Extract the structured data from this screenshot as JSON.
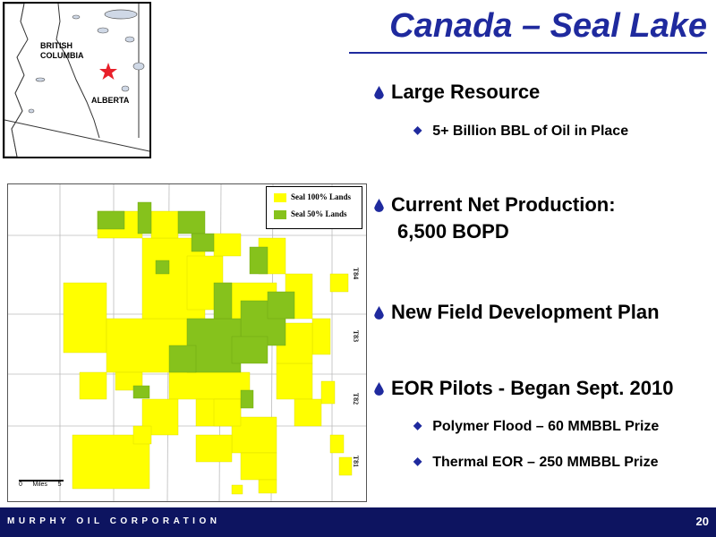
{
  "title": "Canada – Seal Lake",
  "inset_map": {
    "labels": [
      "BRITISH\nCOLUMBIA",
      "ALBERTA"
    ],
    "label_bc": "BRITISH",
    "label_bc2": "COLUMBIA",
    "label_ab": "ALBERTA",
    "marker_icon": "star-icon",
    "marker_color": "#e8202a"
  },
  "lands_map": {
    "legend": [
      {
        "label": "Seal 100% Lands",
        "color": "#ffff00"
      },
      {
        "label": "Seal 50% Lands",
        "color": "#86c21c"
      }
    ],
    "scale_label": "0      Miles      5",
    "township_labels": [
      "T84",
      "T83",
      "T82",
      "T81"
    ]
  },
  "bullets": [
    {
      "text": "Large Resource",
      "sub": [
        "5+ Billion BBL of Oil in Place"
      ]
    },
    {
      "text": "Current Net Production:",
      "text2": "6,500 BOPD",
      "sub": []
    },
    {
      "text": "New Field Development Plan",
      "sub": []
    },
    {
      "text": "EOR Pilots - Began Sept. 2010",
      "sub": [
        "Polymer Flood – 60 MMBBL Prize",
        "Thermal EOR – 250 MMBBL Prize"
      ]
    }
  ],
  "footer": {
    "company": "MURPHY OIL CORPORATION",
    "page": "20"
  }
}
